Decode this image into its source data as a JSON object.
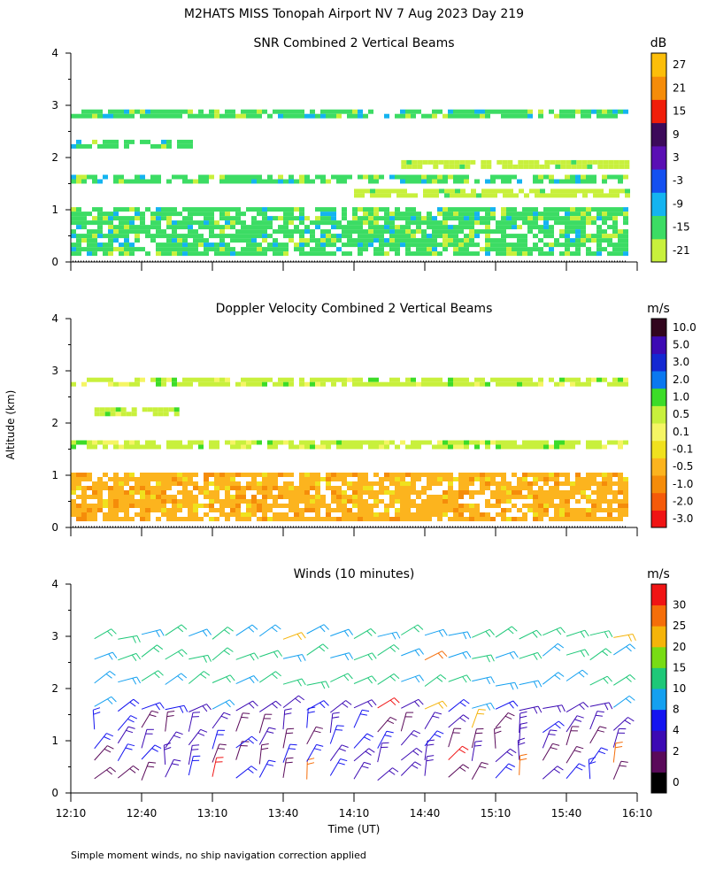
{
  "page_title": "M2HATS MISS Tonopah Airport NV   7 Aug 2023 Day 219",
  "y_axis_label": "Altitude (km)",
  "x_axis_label": "Time (UT)",
  "footnote": "Simple moment winds, no ship navigation correction applied",
  "chart_data": [
    {
      "type": "heatmap",
      "title": "SNR Combined 2 Vertical Beams",
      "unit": "dB",
      "ylim": [
        0,
        4
      ],
      "yticks": [
        "0",
        "1",
        "2",
        "3",
        "4"
      ],
      "xlim": [
        "12:10",
        "16:10"
      ],
      "xticks": [
        "12:10",
        "12:40",
        "13:10",
        "13:40",
        "14:10",
        "14:40",
        "15:10",
        "15:40",
        "16:10"
      ],
      "colorbar": {
        "labels": [
          "-21",
          "-15",
          "-9",
          "-3",
          "3",
          "9",
          "15",
          "21",
          "27"
        ],
        "colors": [
          "#c8f03c",
          "#3cdc64",
          "#14b4f0",
          "#1450f0",
          "#5a0fb4",
          "#3c0a5a",
          "#f01e0a",
          "#f58c0a",
          "#fcbe0a"
        ]
      },
      "layers": [
        {
          "alt_km": 2.85,
          "thickness_km": 0.14,
          "from": "12:10",
          "to": "16:05",
          "level": "-15"
        },
        {
          "alt_km": 2.28,
          "thickness_km": 0.12,
          "from": "12:10",
          "to": "13:00",
          "level": "-15"
        },
        {
          "alt_km": 1.9,
          "thickness_km": 0.1,
          "from": "14:30",
          "to": "16:05",
          "level": "-21"
        },
        {
          "alt_km": 1.6,
          "thickness_km": 0.14,
          "from": "12:10",
          "to": "16:05",
          "level": "-15"
        },
        {
          "alt_km": 1.35,
          "thickness_km": 0.1,
          "from": "14:10",
          "to": "16:05",
          "level": "-21"
        },
        {
          "alt_km": 0.6,
          "thickness_km": 0.9,
          "from": "12:10",
          "to": "16:05",
          "level": "-15"
        }
      ]
    },
    {
      "type": "heatmap",
      "title": "Doppler Velocity Combined 2 Vertical Beams",
      "unit": "m/s",
      "ylim": [
        0,
        4
      ],
      "yticks": [
        "0",
        "1",
        "2",
        "3",
        "4"
      ],
      "xlim": [
        "12:10",
        "16:10"
      ],
      "xticks": [
        "12:10",
        "12:40",
        "13:10",
        "13:40",
        "14:10",
        "14:40",
        "15:10",
        "15:40",
        "16:10"
      ],
      "colorbar": {
        "labels": [
          "-3.0",
          "-2.0",
          "-1.0",
          "-0.5",
          "-0.1",
          "0.1",
          "0.5",
          "1.0",
          "2.0",
          "3.0",
          "5.0",
          "10.0"
        ],
        "colors": [
          "#f01414",
          "#f55a0a",
          "#f58c0a",
          "#fcb41e",
          "#f0e11e",
          "#f5f564",
          "#c8f03c",
          "#3cdc28",
          "#0a78f0",
          "#1428d2",
          "#3c0ab4",
          "#32051e"
        ]
      },
      "layers": [
        {
          "alt_km": 2.8,
          "thickness_km": 0.14,
          "from": "12:10",
          "to": "16:05",
          "level": "0.5"
        },
        {
          "alt_km": 2.25,
          "thickness_km": 0.1,
          "from": "12:20",
          "to": "12:55",
          "level": "0.5"
        },
        {
          "alt_km": 1.6,
          "thickness_km": 0.14,
          "from": "12:10",
          "to": "16:05",
          "level": "0.5"
        },
        {
          "alt_km": 0.6,
          "thickness_km": 0.9,
          "from": "12:10",
          "to": "16:05",
          "level": "-0.5"
        }
      ]
    },
    {
      "type": "scatter",
      "title": "Winds (10 minutes)",
      "unit": "m/s",
      "ylim": [
        0,
        4
      ],
      "yticks": [
        "0",
        "1",
        "2",
        "3",
        "4"
      ],
      "xlim": [
        "12:10",
        "16:10"
      ],
      "xticks": [
        "12:10",
        "12:40",
        "13:10",
        "13:40",
        "14:10",
        "14:40",
        "15:10",
        "15:40",
        "16:10"
      ],
      "colorbar": {
        "labels": [
          "0",
          "2",
          "4",
          "8",
          "10",
          "15",
          "20",
          "25",
          "30"
        ],
        "colors": [
          "#000000",
          "#5a0a5a",
          "#3c0ab4",
          "#1414f0",
          "#14a0f0",
          "#1ec878",
          "#78dc14",
          "#f5b40a",
          "#f56e0a",
          "#f01414"
        ]
      },
      "barb_times": [
        "12:20",
        "12:30",
        "12:40",
        "12:50",
        "13:00",
        "13:10",
        "13:20",
        "13:30",
        "13:40",
        "13:50",
        "14:00",
        "14:10",
        "14:20",
        "14:30",
        "14:40",
        "14:50",
        "15:00",
        "15:10",
        "15:20",
        "15:30",
        "15:40",
        "15:50",
        "16:00"
      ],
      "barb_levels_km": [
        0.3,
        0.6,
        0.9,
        1.2,
        1.6,
        2.1,
        2.6,
        3.0
      ]
    }
  ]
}
